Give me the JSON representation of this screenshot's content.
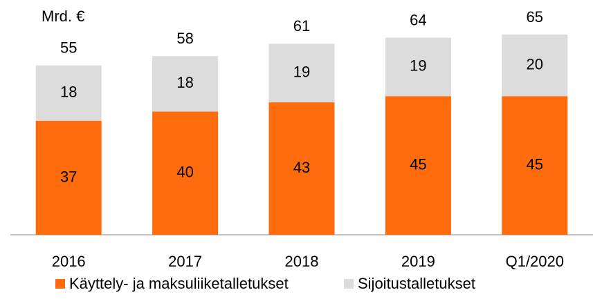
{
  "chart_data": {
    "type": "stacked_bar",
    "unit_label": "Mrd. €",
    "categories": [
      "2016",
      "2017",
      "2018",
      "2019",
      "Q1/2020"
    ],
    "series": [
      {
        "name": "Käyttely- ja maksuliiketalletukset",
        "color": "#ff6c0e",
        "values": [
          37,
          40,
          43,
          45,
          45
        ]
      },
      {
        "name": "Sijoitustalletukset",
        "color": "#dcdcdc",
        "values": [
          18,
          18,
          19,
          19,
          20
        ]
      }
    ],
    "totals": [
      55,
      58,
      61,
      64,
      65
    ]
  }
}
